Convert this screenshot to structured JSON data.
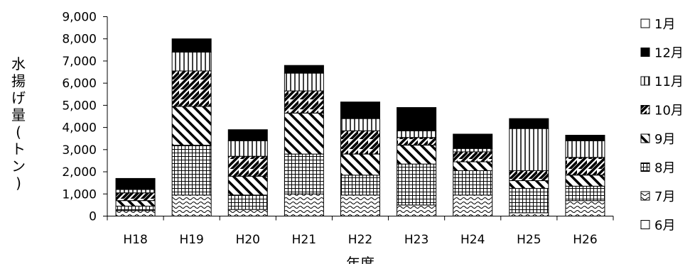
{
  "chart_data": {
    "type": "bar",
    "stacked": true,
    "categories": [
      "H18",
      "H19",
      "H20",
      "H21",
      "H22",
      "H23",
      "H24",
      "H25",
      "H26"
    ],
    "xlabel": "年度",
    "ylabel": "水揚げ量(トン)",
    "ylim": [
      0,
      9000
    ],
    "yticks": [
      "0",
      "1,000",
      "2,000",
      "3,000",
      "4,000",
      "5,000",
      "6,000",
      "7,000",
      "8,000",
      "9,000"
    ],
    "legend_position": "right",
    "legend": [
      "1月",
      "12月",
      "11月",
      "10月",
      "9月",
      "8月",
      "7月",
      "6月"
    ],
    "series": [
      {
        "name": "6月",
        "values": [
          0,
          0,
          0,
          0,
          0,
          0,
          0,
          0,
          0
        ]
      },
      {
        "name": "7月",
        "values": [
          250,
          950,
          300,
          1000,
          950,
          500,
          950,
          150,
          700
        ]
      },
      {
        "name": "8月",
        "values": [
          200,
          2250,
          650,
          1800,
          900,
          1850,
          1100,
          1100,
          650
        ]
      },
      {
        "name": "9月",
        "values": [
          250,
          1750,
          850,
          1850,
          950,
          850,
          400,
          350,
          500
        ]
      },
      {
        "name": "10月",
        "values": [
          350,
          1600,
          900,
          1000,
          1050,
          350,
          450,
          450,
          800
        ]
      },
      {
        "name": "11月",
        "values": [
          150,
          850,
          700,
          800,
          550,
          300,
          150,
          1900,
          750
        ]
      },
      {
        "name": "12月",
        "values": [
          500,
          600,
          500,
          350,
          750,
          1050,
          650,
          450,
          250
        ]
      },
      {
        "name": "1月",
        "values": [
          0,
          0,
          0,
          0,
          0,
          0,
          0,
          0,
          0
        ]
      }
    ],
    "grid": false
  }
}
